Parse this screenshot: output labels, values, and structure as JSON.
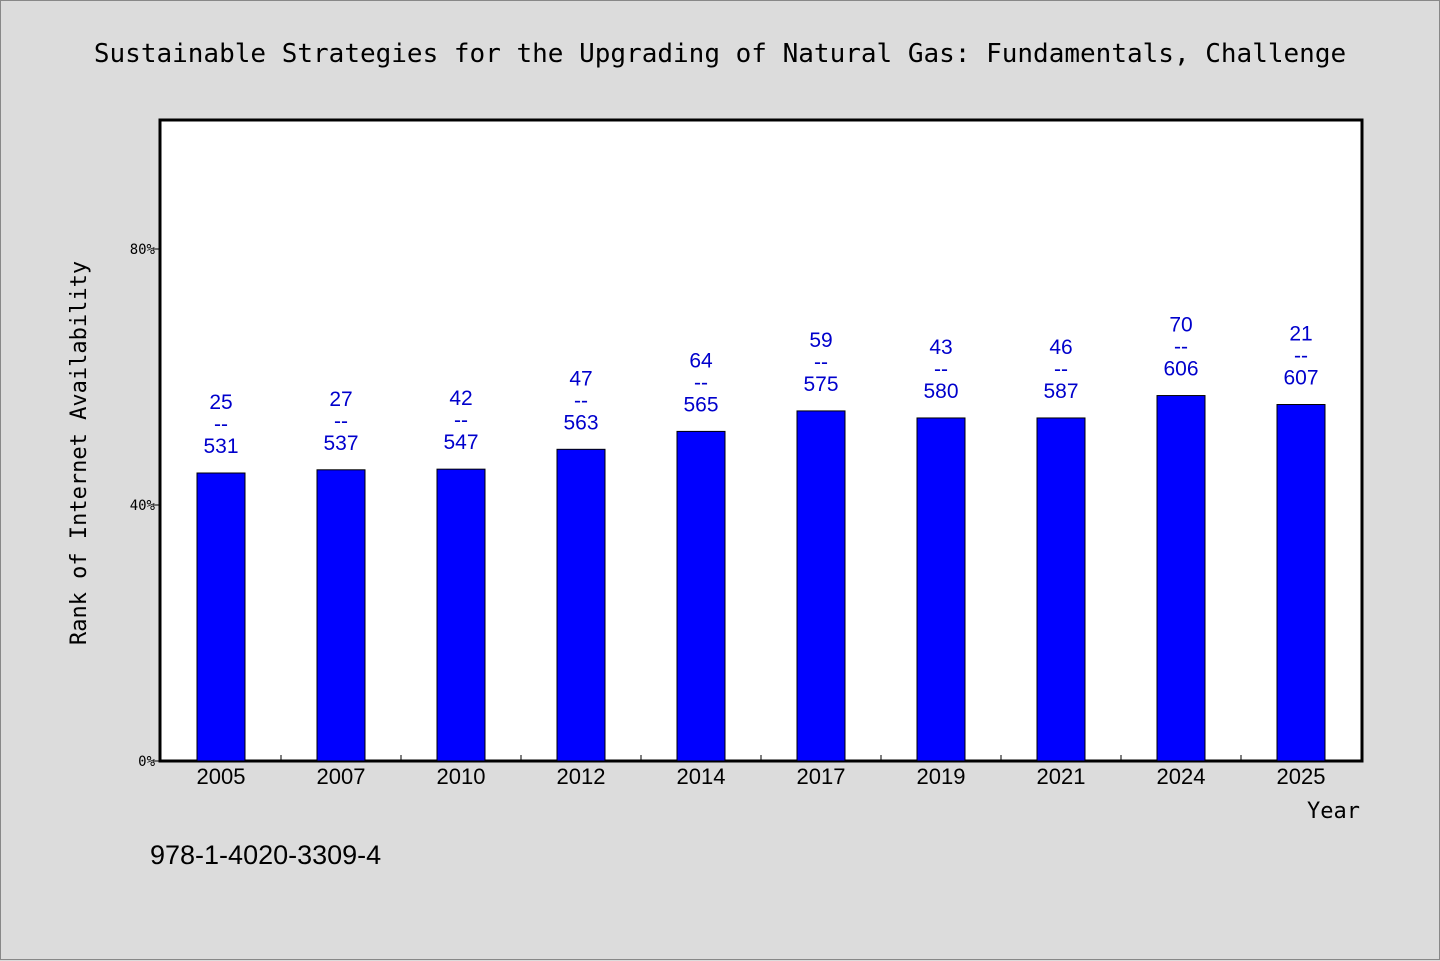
{
  "chart_data": {
    "type": "bar",
    "title": "Sustainable Strategies for the Upgrading of Natural Gas: Fundamentals, Challenge",
    "xlabel": "Year",
    "ylabel": "Rank of Internet Availability",
    "categories": [
      "2005",
      "2007",
      "2010",
      "2012",
      "2014",
      "2017",
      "2019",
      "2021",
      "2024",
      "2025"
    ],
    "series": [
      {
        "values": [
          45,
          45.5,
          45.6,
          48.7,
          51.5,
          54.7,
          53.6,
          53.6,
          57.1,
          55.7
        ],
        "labels": [
          [
            "25",
            "--",
            "531"
          ],
          [
            "27",
            "--",
            "537"
          ],
          [
            "42",
            "--",
            "547"
          ],
          [
            "47",
            "--",
            "563"
          ],
          [
            "64",
            "--",
            "565"
          ],
          [
            "59",
            "--",
            "575"
          ],
          [
            "43",
            "--",
            "580"
          ],
          [
            "46",
            "--",
            "587"
          ],
          [
            "70",
            "--",
            "606"
          ],
          [
            "21",
            "--",
            "607"
          ]
        ]
      }
    ],
    "ylim": [
      0,
      100
    ],
    "yticks": [
      {
        "value": 0,
        "label": "0%"
      },
      {
        "value": 40,
        "label": "40%"
      },
      {
        "value": 80,
        "label": "80%"
      }
    ],
    "grid": false,
    "footer_text": "978-1-4020-3309-4",
    "colors": {
      "bar": "#0000ff",
      "bar_edge": "#000000",
      "data_label": "#0000cc",
      "page_background": "#dcdcdc",
      "plot_background": "#ffffff"
    }
  }
}
